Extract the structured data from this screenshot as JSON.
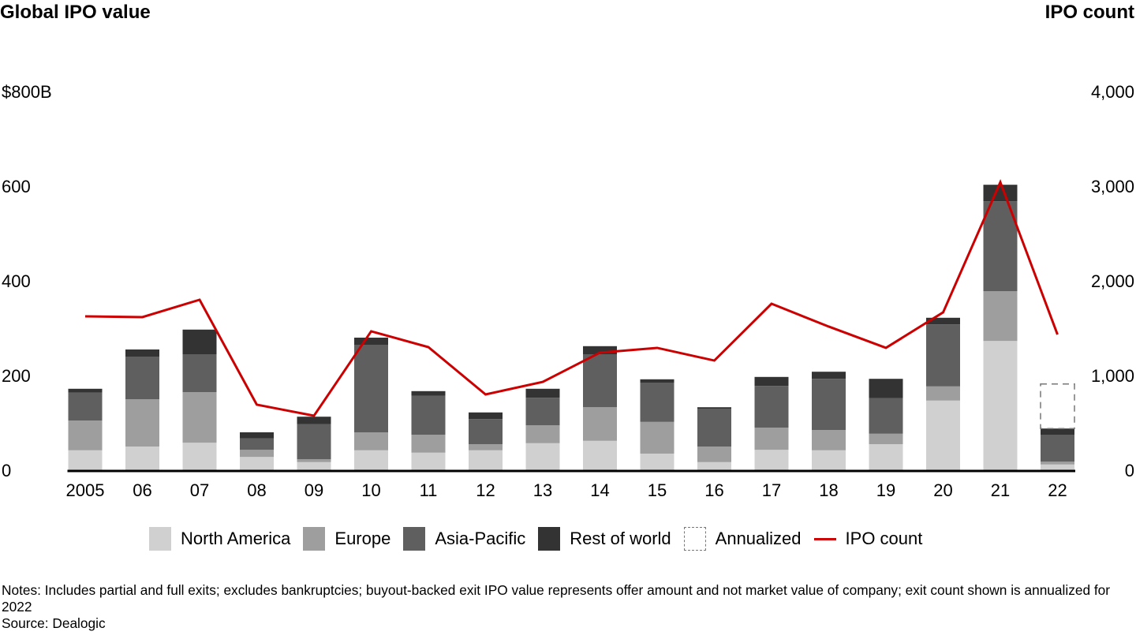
{
  "chart_data": {
    "type": "bar",
    "stacked": true,
    "title_left": "Global IPO value",
    "title_right": "IPO count",
    "categories": [
      "2005",
      "06",
      "07",
      "08",
      "09",
      "10",
      "11",
      "12",
      "13",
      "14",
      "15",
      "16",
      "17",
      "18",
      "19",
      "20",
      "21",
      "22"
    ],
    "y_left": {
      "label": "Global IPO value",
      "ticks": [
        "$800B",
        "600",
        "400",
        "200",
        "0"
      ],
      "tick_values": [
        800,
        600,
        400,
        200,
        0
      ],
      "range": [
        0,
        800
      ],
      "unit": "$B"
    },
    "y_right": {
      "label": "IPO count",
      "ticks": [
        "4,000",
        "3,000",
        "2,000",
        "1,000",
        "0"
      ],
      "tick_values": [
        4000,
        3000,
        2000,
        1000,
        0
      ],
      "range": [
        0,
        4000
      ]
    },
    "series": [
      {
        "name": "North America",
        "color": "#d0d0d0",
        "values": [
          42,
          50,
          58,
          28,
          17,
          42,
          37,
          42,
          57,
          62,
          35,
          17,
          43,
          42,
          55,
          147,
          273,
          12
        ]
      },
      {
        "name": "Europe",
        "color": "#9e9e9e",
        "values": [
          63,
          100,
          107,
          15,
          6,
          38,
          38,
          13,
          38,
          71,
          67,
          33,
          47,
          43,
          22,
          30,
          105,
          6
        ]
      },
      {
        "name": "Asia-Pacific",
        "color": "#5f5f5f",
        "values": [
          59,
          90,
          80,
          24,
          74,
          185,
          82,
          53,
          58,
          112,
          83,
          80,
          88,
          108,
          75,
          131,
          190,
          57
        ]
      },
      {
        "name": "Rest of world",
        "color": "#333333",
        "values": [
          8,
          15,
          52,
          13,
          16,
          15,
          10,
          14,
          19,
          17,
          7,
          3,
          19,
          15,
          41,
          14,
          35,
          13
        ]
      }
    ],
    "annualized": {
      "name": "Annualized",
      "category": "22",
      "total_value": 182
    },
    "line": {
      "name": "IPO count",
      "axis": "right",
      "color": "#cc0000",
      "values": [
        1625,
        1617,
        1800,
        692,
        575,
        1467,
        1300,
        800,
        933,
        1242,
        1292,
        1158,
        1758,
        1517,
        1292,
        1667,
        3042,
        1433
      ]
    },
    "legend": [
      "North America",
      "Europe",
      "Asia-Pacific",
      "Rest of world",
      "Annualized",
      "IPO count"
    ],
    "legend_position": "bottom",
    "grid": false
  },
  "notes": "Notes: Includes partial and full exits; excludes bankruptcies; buyout-backed exit IPO value represents offer amount and not market value of company; exit count shown is annualized for 2022",
  "source": "Source: Dealogic"
}
